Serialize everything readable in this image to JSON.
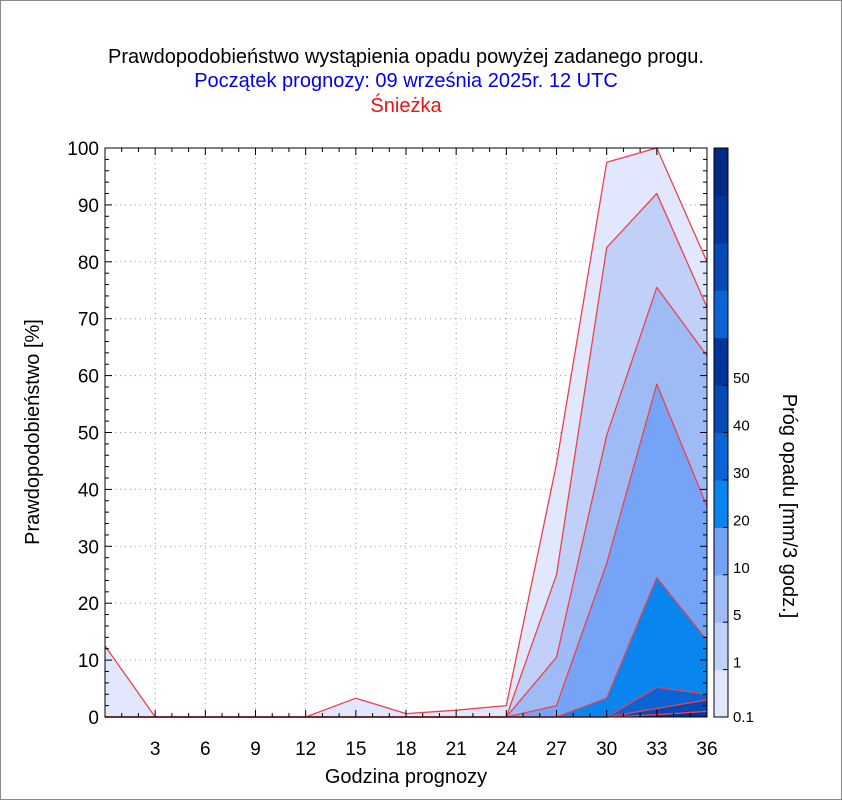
{
  "chart_data": {
    "type": "area",
    "title": "Prawdopodobieństwo wystąpienia opadu powyżej zadanego progu.",
    "subtitle": "Początek prognozy: 09 września 2025r. 12 UTC",
    "location": "Śnieżka",
    "xlabel": "Godzina prognozy",
    "ylabel": "Prawdopodobieństwo [%]",
    "colorbar_label": "Próg opadu [mm/3 godz.]",
    "xlim": [
      0,
      36
    ],
    "ylim": [
      0,
      100
    ],
    "x_ticks": [
      "3",
      "6",
      "9",
      "12",
      "15",
      "18",
      "21",
      "24",
      "27",
      "30",
      "33",
      "36"
    ],
    "y_ticks": [
      "0",
      "10",
      "20",
      "30",
      "40",
      "50",
      "60",
      "70",
      "80",
      "90",
      "100"
    ],
    "grid": true,
    "x": [
      0,
      3,
      6,
      9,
      12,
      15,
      18,
      21,
      24,
      27,
      30,
      33,
      36
    ],
    "series": [
      {
        "name": "0.1",
        "color": "#e1e7fc",
        "values": [
          12.5,
          0,
          0,
          0,
          0,
          3.3,
          0.6,
          1.2,
          2,
          44.5,
          97.5,
          100,
          80
        ]
      },
      {
        "name": "1",
        "color": "#c0d0f9",
        "values": [
          0,
          0,
          0,
          0,
          0,
          0,
          0,
          0,
          0,
          25,
          82.5,
          92,
          72
        ]
      },
      {
        "name": "5",
        "color": "#9fbbf5",
        "values": [
          0,
          0,
          0,
          0,
          0,
          0,
          0,
          0,
          0,
          10.5,
          49.5,
          75.5,
          63.5
        ]
      },
      {
        "name": "10",
        "color": "#75a4f6",
        "values": [
          0,
          0,
          0,
          0,
          0,
          0,
          0,
          0,
          0,
          2,
          27,
          58.5,
          37
        ]
      },
      {
        "name": "20",
        "color": "#0985f0",
        "values": [
          0,
          0,
          0,
          0,
          0,
          0,
          0,
          0,
          0,
          0,
          3.3,
          24.5,
          13.5
        ]
      },
      {
        "name": "30",
        "color": "#0a64d6",
        "values": [
          0,
          0,
          0,
          0,
          0,
          0,
          0,
          0,
          0,
          0,
          0,
          5.2,
          4
        ]
      },
      {
        "name": "40",
        "color": "#0649b4",
        "values": [
          0,
          0,
          0,
          0,
          0,
          0,
          0,
          0,
          0,
          0,
          0,
          1.5,
          3
        ]
      },
      {
        "name": "50",
        "color": "#02349c",
        "values": [
          0,
          0,
          0,
          0,
          0,
          0,
          0,
          0,
          0,
          0,
          0,
          0.4,
          1
        ]
      }
    ],
    "colorbar": {
      "labels": [
        "0.1",
        "1",
        "5",
        "10",
        "20",
        "30",
        "40",
        "50"
      ],
      "colors": [
        "#e1e7fc",
        "#c0d0f9",
        "#9fbbf5",
        "#75a4f6",
        "#0985f0",
        "#0a64d6",
        "#0649b4",
        "#02349c"
      ],
      "extra_colors": [
        "#0a64d6",
        "#0649b4",
        "#02349c",
        "#012a82"
      ]
    },
    "colors": {
      "title": "#000000",
      "subtitle": "#0000ee",
      "location": "#ee1111",
      "contour": "#e8434f"
    }
  }
}
